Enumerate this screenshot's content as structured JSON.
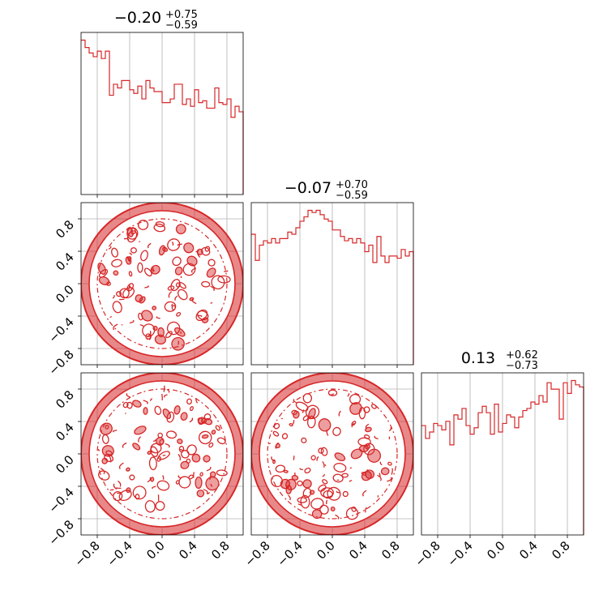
{
  "chart_data": {
    "type": "corner",
    "series_color": "#d62728",
    "grid": true,
    "axis_range": [
      -1.0,
      1.0
    ],
    "tick_values": [
      -0.8,
      -0.4,
      0.0,
      0.4,
      0.8
    ],
    "tick_labels": [
      "−0.8",
      "−0.4",
      "0.0",
      "0.4",
      "0.8"
    ],
    "parameters": [
      {
        "title_value": "−0.20",
        "title_plus": "+0.75",
        "title_minus": "−0.59",
        "hist_edges_start": -1.0,
        "hist_bin_width": 0.05,
        "hist_counts": [
          84,
          80,
          77,
          75,
          78,
          74,
          78,
          54,
          60,
          58,
          62,
          62,
          57,
          55,
          59,
          52,
          62,
          58,
          56,
          56,
          50,
          50,
          52,
          60,
          60,
          49,
          52,
          48,
          57,
          50,
          51,
          47,
          47,
          58,
          50,
          49,
          52,
          42,
          48,
          45
        ]
      },
      {
        "title_value": "−0.07",
        "title_plus": "+0.70",
        "title_minus": "−0.59",
        "hist_edges_start": -1.0,
        "hist_bin_width": 0.05,
        "hist_counts": [
          60,
          48,
          55,
          57,
          56,
          58,
          56,
          58,
          58,
          61,
          60,
          63,
          66,
          68,
          71,
          70,
          71,
          69,
          67,
          66,
          62,
          62,
          59,
          57,
          58,
          56,
          58,
          56,
          52,
          55,
          47,
          59,
          50,
          47,
          50,
          50,
          49,
          53,
          50,
          52
        ]
      },
      {
        "title_value": "0.13",
        "title_plus": "+0.62",
        "title_minus": "−0.73",
        "hist_edges_start": -1.0,
        "hist_bin_width": 0.05,
        "hist_counts": [
          51,
          45,
          48,
          52,
          51,
          49,
          53,
          42,
          56,
          54,
          59,
          51,
          47,
          50,
          57,
          60,
          57,
          47,
          61,
          48,
          52,
          56,
          55,
          50,
          55,
          58,
          59,
          62,
          61,
          65,
          62,
          71,
          68,
          68,
          54,
          71,
          66,
          72,
          70,
          69
        ]
      }
    ],
    "pairs": [
      {
        "row": 1,
        "col": 0,
        "shape": "uniform disk, radius 1.0"
      },
      {
        "row": 2,
        "col": 0,
        "shape": "uniform disk, radius 1.0"
      },
      {
        "row": 2,
        "col": 1,
        "shape": "uniform disk, radius 1.0"
      }
    ]
  }
}
